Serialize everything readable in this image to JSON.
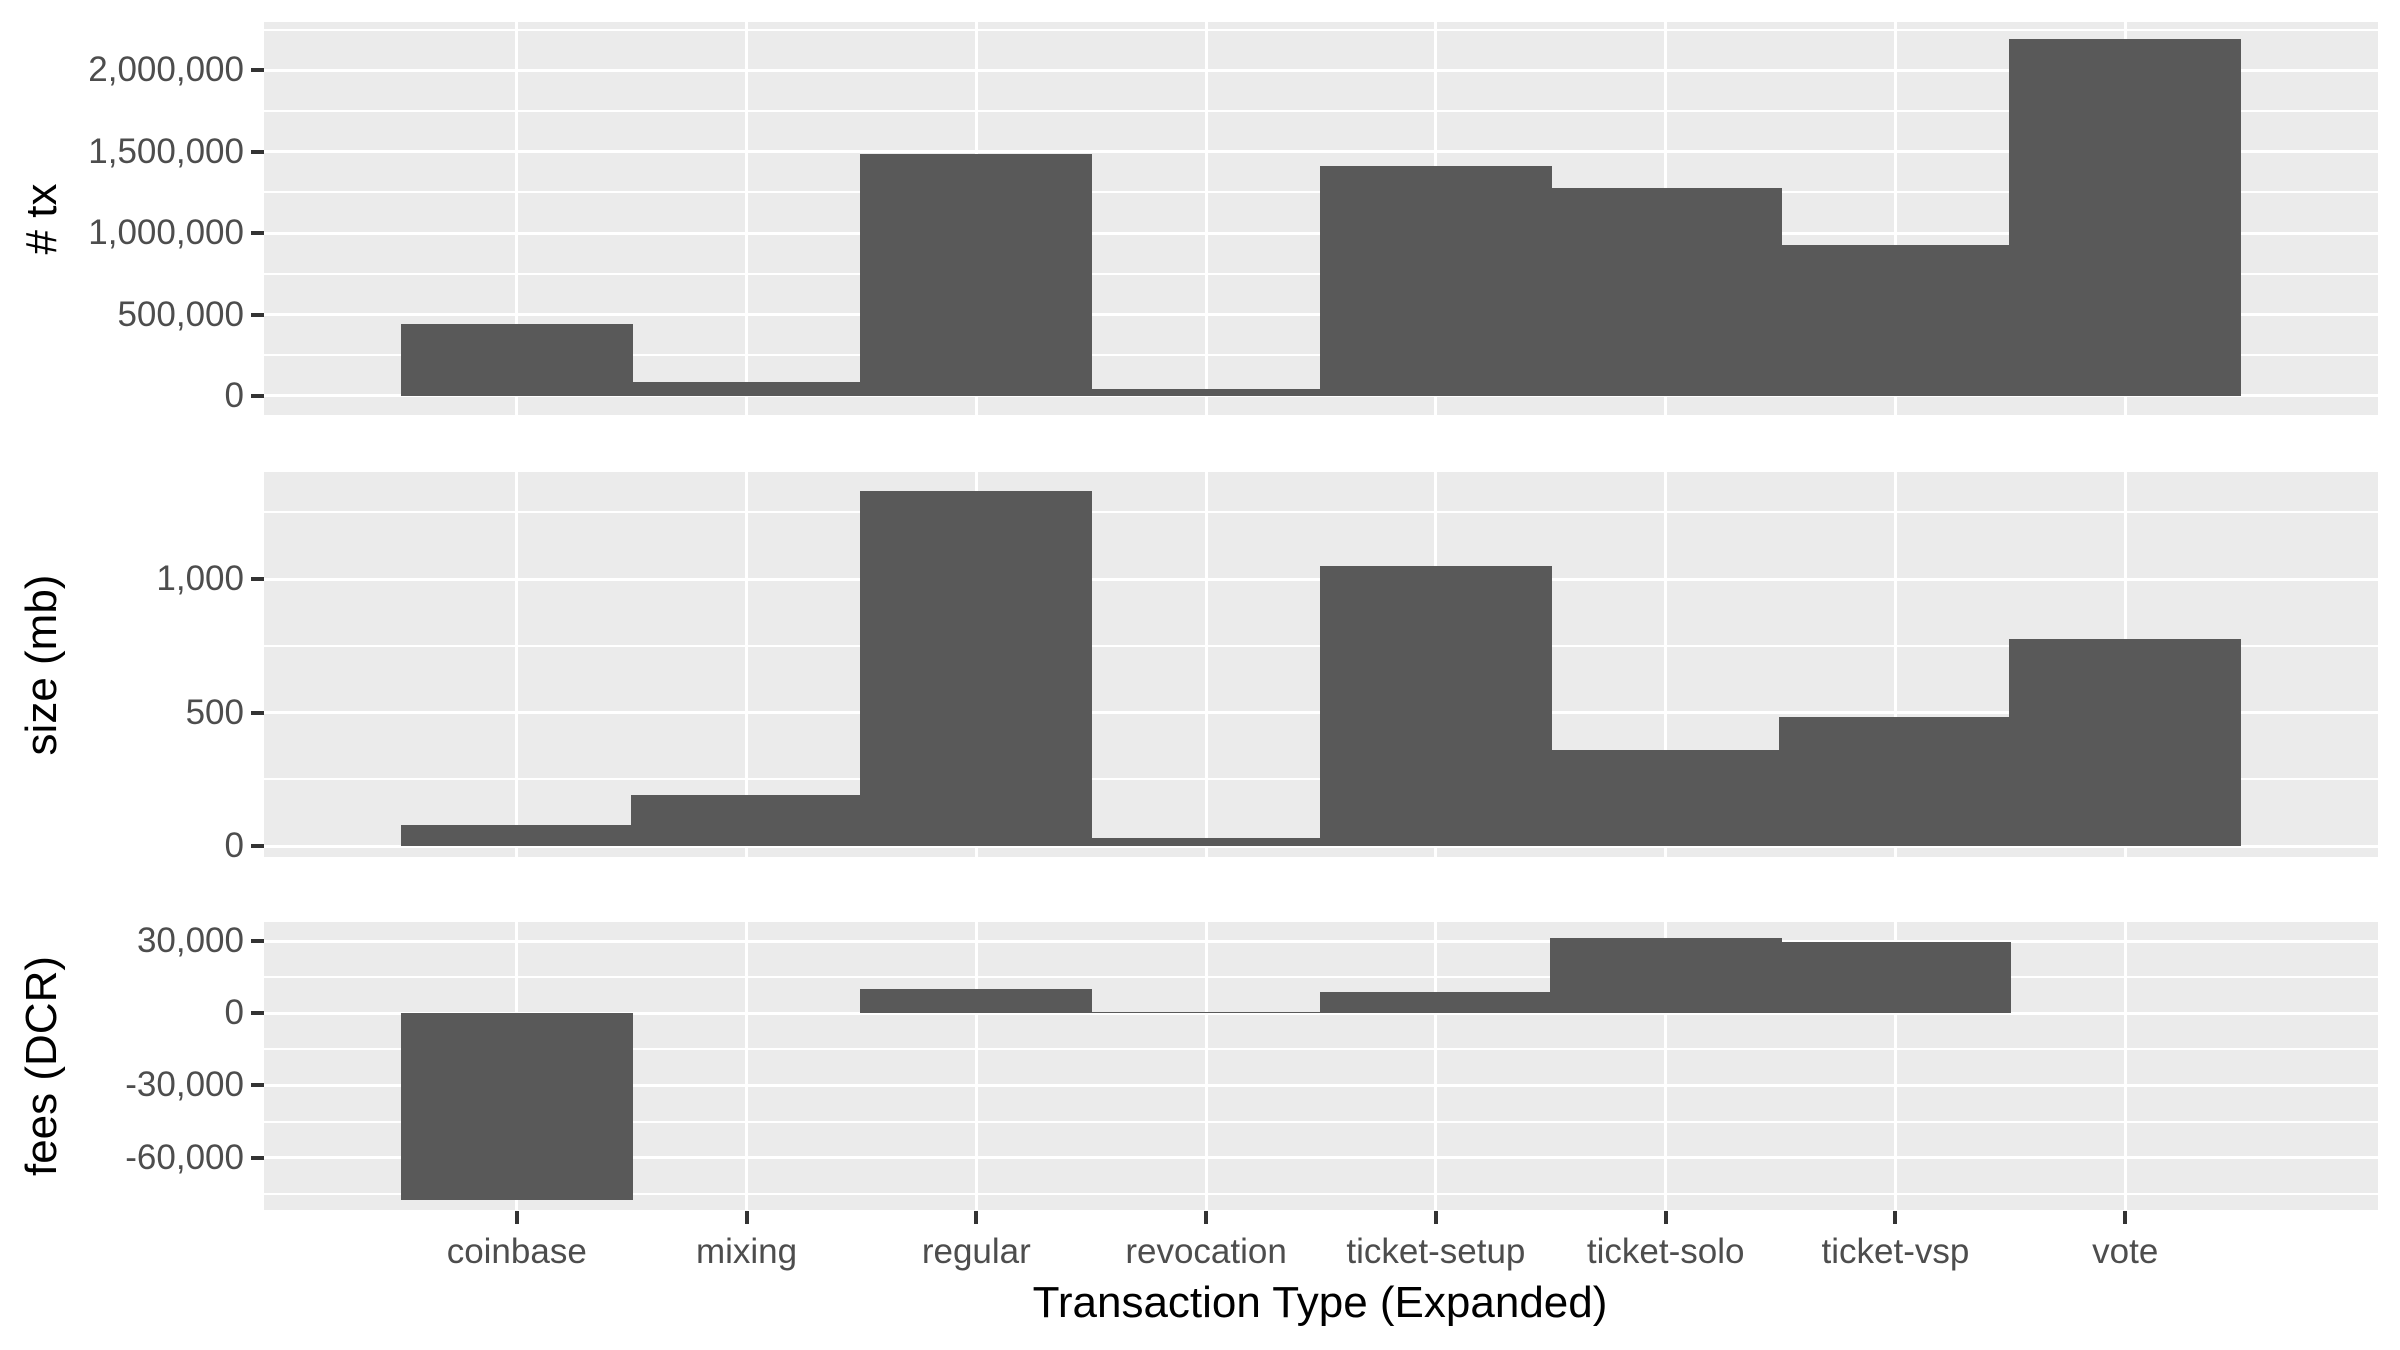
{
  "chart_data": {
    "type": "bar",
    "title": "",
    "xlabel": "Transaction Type (Expanded)",
    "legend": "none",
    "grid": "on",
    "categories": [
      "coinbase",
      "mixing",
      "regular",
      "revocation",
      "ticket-setup",
      "ticket-solo",
      "ticket-vsp",
      "vote"
    ],
    "facets": [
      {
        "ylabel": "# tx",
        "ylim": [
          -117000,
          2297000
        ],
        "major_ticks": [
          {
            "value": 0,
            "label": "0"
          },
          {
            "value": 500000,
            "label": "500,000"
          },
          {
            "value": 1000000,
            "label": "1,000,000"
          },
          {
            "value": 1500000,
            "label": "1,500,000"
          },
          {
            "value": 2000000,
            "label": "2,000,000"
          }
        ],
        "minor_ticks": [
          250000,
          750000,
          1250000,
          1750000,
          2250000
        ],
        "values": [
          440000,
          85000,
          1485000,
          45000,
          1410000,
          1280000,
          930000,
          2190000
        ]
      },
      {
        "ylabel": "size (mb)",
        "ylim": [
          -41,
          1401
        ],
        "major_ticks": [
          {
            "value": 0,
            "label": "0"
          },
          {
            "value": 500,
            "label": "500"
          },
          {
            "value": 1000,
            "label": "1,000"
          }
        ],
        "minor_ticks": [
          250,
          750,
          1250
        ],
        "values": [
          80,
          190,
          1330,
          30,
          1050,
          360,
          485,
          775
        ]
      },
      {
        "ylabel": "fees (DCR)",
        "ylim": [
          -81800,
          37980
        ],
        "major_ticks": [
          {
            "value": 30000,
            "label": "30,000"
          },
          {
            "value": 0,
            "label": "0"
          },
          {
            "value": -30000,
            "label": "-30,000"
          },
          {
            "value": -60000,
            "label": "-60,000"
          }
        ],
        "minor_ticks": [
          15000,
          -15000,
          -45000,
          -75000
        ],
        "values": [
          -77800,
          0,
          10000,
          600,
          9000,
          31500,
          29500,
          0
        ]
      }
    ],
    "colors": {
      "bar": "#595959",
      "panel_background": "#EBEBEB",
      "gridline": "#FFFFFF",
      "tick_text": "#4D4D4D",
      "axis_title_text": "#000000",
      "tick_mark": "#333333",
      "page_background": "#FFFFFF"
    }
  }
}
